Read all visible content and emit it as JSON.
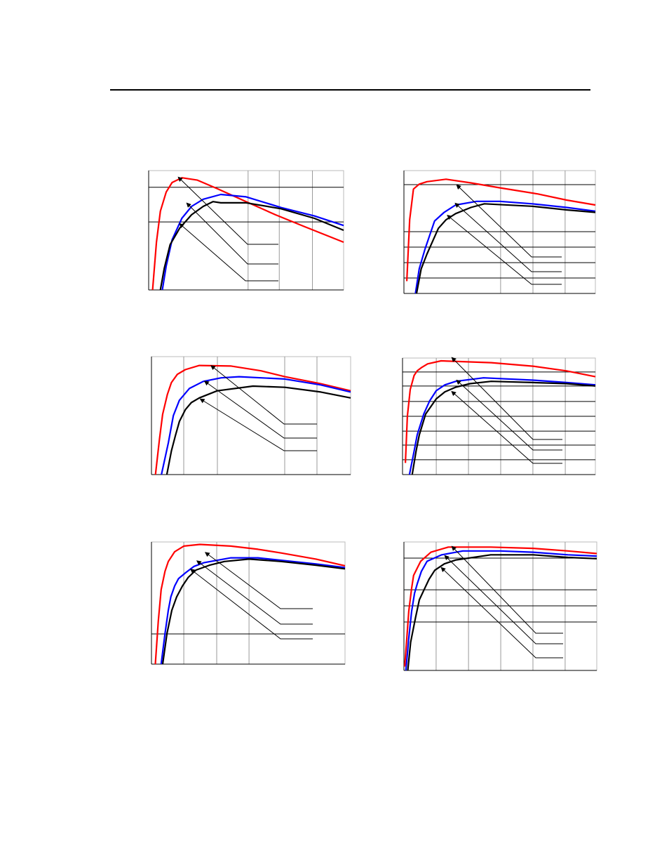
{
  "chart_data": [
    {
      "type": "line",
      "xlim": [
        0,
        100
      ],
      "ylim": [
        0,
        100
      ],
      "xticks": [
        51,
        67,
        84
      ],
      "yticks": [
        57,
        86
      ],
      "grid": true,
      "series": [
        {
          "color": "#ff0000",
          "x": [
            2,
            4,
            6,
            9,
            12,
            17,
            25,
            35,
            50,
            65,
            80,
            100
          ],
          "values": [
            0,
            40,
            66,
            82,
            90,
            94,
            92,
            85,
            74,
            63,
            53,
            40
          ]
        },
        {
          "color": "#0000ff",
          "x": [
            7,
            9,
            12,
            17,
            22,
            28,
            37,
            50,
            68,
            85,
            100
          ],
          "values": [
            0,
            20,
            42,
            60,
            70,
            76,
            80,
            78,
            69,
            62,
            54
          ]
        },
        {
          "color": "#000000",
          "x": [
            6,
            8,
            11,
            16,
            22,
            28,
            33,
            37,
            50,
            68,
            85,
            100
          ],
          "values": [
            0,
            18,
            38,
            52,
            63,
            70,
            74,
            73,
            73,
            68,
            60,
            50
          ]
        }
      ]
    },
    {
      "type": "line",
      "xlim": [
        0,
        100
      ],
      "ylim": [
        0,
        100
      ],
      "xticks": [
        50.5,
        67.4,
        84.2
      ],
      "yticks": [
        12.6,
        25.1,
        37.7,
        50.3,
        88.6
      ],
      "grid": true,
      "series": [
        {
          "color": "#ff0000",
          "x": [
            1.5,
            3,
            5,
            8,
            12,
            22,
            35,
            50,
            70,
            85,
            100
          ],
          "values": [
            10,
            60,
            85,
            89,
            91,
            93,
            90,
            86,
            81,
            76,
            72
          ]
        },
        {
          "color": "#0000ff",
          "x": [
            6,
            8,
            11,
            16,
            21,
            27,
            38,
            50,
            67,
            85,
            100
          ],
          "values": [
            0,
            20,
            36,
            59,
            66,
            72,
            75,
            75,
            73,
            70,
            67
          ]
        },
        {
          "color": "#000000",
          "x": [
            6.6,
            9,
            12,
            14,
            18,
            22,
            27,
            35,
            42,
            67,
            85,
            100
          ],
          "values": [
            0,
            20,
            32,
            39,
            53,
            60,
            65,
            70,
            73,
            71,
            68,
            66
          ]
        }
      ]
    },
    {
      "type": "line",
      "xlim": [
        0,
        100
      ],
      "ylim": [
        0,
        100
      ],
      "xticks": [
        16.2,
        33.1,
        66.9,
        83.1
      ],
      "yticks": [],
      "grid": true,
      "series": [
        {
          "color": "#ff0000",
          "x": [
            2,
            4,
            5.6,
            8,
            10,
            13,
            17,
            24,
            40,
            55,
            67,
            85,
            100
          ],
          "values": [
            0,
            30,
            51,
            68,
            78,
            85,
            89,
            92.5,
            92,
            88,
            83,
            77,
            71
          ]
        },
        {
          "color": "#0000ff",
          "x": [
            5,
            8.5,
            11,
            14,
            19,
            26,
            35,
            44,
            67,
            85,
            100
          ],
          "values": [
            0,
            27,
            50,
            63,
            73,
            79,
            82,
            83,
            81,
            76,
            70
          ]
        },
        {
          "color": "#000000",
          "x": [
            7.7,
            10,
            12,
            14,
            17,
            20,
            24,
            33,
            51,
            67,
            85,
            100
          ],
          "values": [
            0,
            20,
            33,
            45,
            55,
            61,
            65,
            71,
            75,
            74,
            70,
            65
          ]
        }
      ]
    },
    {
      "type": "line",
      "xlim": [
        0,
        100
      ],
      "ylim": [
        0,
        100
      ],
      "xticks": [
        17.5,
        34.2,
        50.9,
        67.6,
        84.4
      ],
      "yticks": [
        12.7,
        25.3,
        37.3,
        50,
        62.7,
        76,
        88
      ],
      "grid": true,
      "series": [
        {
          "color": "#ff0000",
          "x": [
            1.5,
            2.5,
            4,
            6,
            7.6,
            10,
            13,
            20,
            46,
            67.6,
            85,
            100
          ],
          "values": [
            10,
            50,
            73,
            85,
            89,
            92,
            95,
            97.6,
            96,
            93,
            89,
            84
          ]
        },
        {
          "color": "#0000ff",
          "x": [
            3.6,
            6,
            7.6,
            11,
            14,
            17.5,
            22,
            27.6,
            42,
            67.6,
            85,
            100
          ],
          "values": [
            0,
            20,
            34,
            52,
            63,
            72,
            77,
            80,
            83,
            81,
            79,
            77
          ]
        },
        {
          "color": "#000000",
          "x": [
            5,
            7,
            8.7,
            12,
            17.5,
            22,
            27.6,
            35,
            46,
            67.6,
            85,
            100
          ],
          "values": [
            0,
            20,
            34,
            52,
            65,
            71,
            75,
            78,
            80,
            79,
            78,
            76
          ]
        }
      ]
    },
    {
      "type": "line",
      "xlim": [
        0,
        100
      ],
      "ylim": [
        0,
        100
      ],
      "xticks": [
        16.7,
        33.7,
        50.4
      ],
      "yticks": [
        24.7
      ],
      "grid": true,
      "series": [
        {
          "color": "#ff0000",
          "x": [
            2,
            3.5,
            5,
            7,
            8.7,
            12,
            16.7,
            25,
            41,
            55,
            67,
            85,
            100
          ],
          "values": [
            0,
            35,
            61,
            76,
            84,
            92,
            96.6,
            98,
            96.6,
            94,
            91,
            86,
            80.5
          ]
        },
        {
          "color": "#0000ff",
          "x": [
            5,
            7,
            8.7,
            10,
            12,
            14,
            17.8,
            22,
            27,
            41,
            55,
            67,
            85,
            100
          ],
          "values": [
            0,
            25,
            44,
            55,
            64,
            70,
            75,
            80,
            83,
            87,
            87,
            85,
            82,
            79
          ]
        },
        {
          "color": "#000000",
          "x": [
            5.8,
            8,
            10.5,
            13,
            16,
            19,
            23,
            30,
            37.7,
            50.4,
            67,
            85,
            100
          ],
          "values": [
            0,
            25,
            44,
            55,
            64,
            71,
            77,
            81,
            84,
            86,
            84,
            81,
            78
          ]
        }
      ]
    },
    {
      "type": "line",
      "xlim": [
        0,
        100
      ],
      "ylim": [
        0,
        100
      ],
      "xticks": [
        16.7,
        33.5,
        50.2,
        66.9,
        83.6
      ],
      "yticks": [
        37.7,
        50.3,
        62.8,
        87.4
      ],
      "grid": true,
      "series": [
        {
          "color": "#ff0000",
          "x": [
            0.4,
            1.5,
            2.5,
            4,
            5,
            7,
            8.7,
            14,
            23,
            45,
            67,
            85,
            100
          ],
          "values": [
            3,
            25,
            46,
            64,
            74,
            80,
            85,
            92,
            96,
            96,
            95,
            93,
            91
          ]
        },
        {
          "color": "#0000ff",
          "x": [
            1,
            2.5,
            4,
            5.5,
            7,
            9,
            12,
            19.6,
            30.5,
            50,
            67,
            85,
            100
          ],
          "values": [
            0,
            25,
            46,
            60,
            68,
            77,
            85,
            90,
            93,
            93,
            92,
            90,
            89
          ]
        },
        {
          "color": "#000000",
          "x": [
            2,
            3.5,
            6,
            8,
            10.5,
            13,
            16,
            21,
            27,
            45,
            67,
            85,
            100
          ],
          "values": [
            0,
            22,
            41,
            55,
            63,
            71,
            78,
            83,
            86,
            90,
            90,
            88,
            87
          ]
        }
      ]
    }
  ]
}
